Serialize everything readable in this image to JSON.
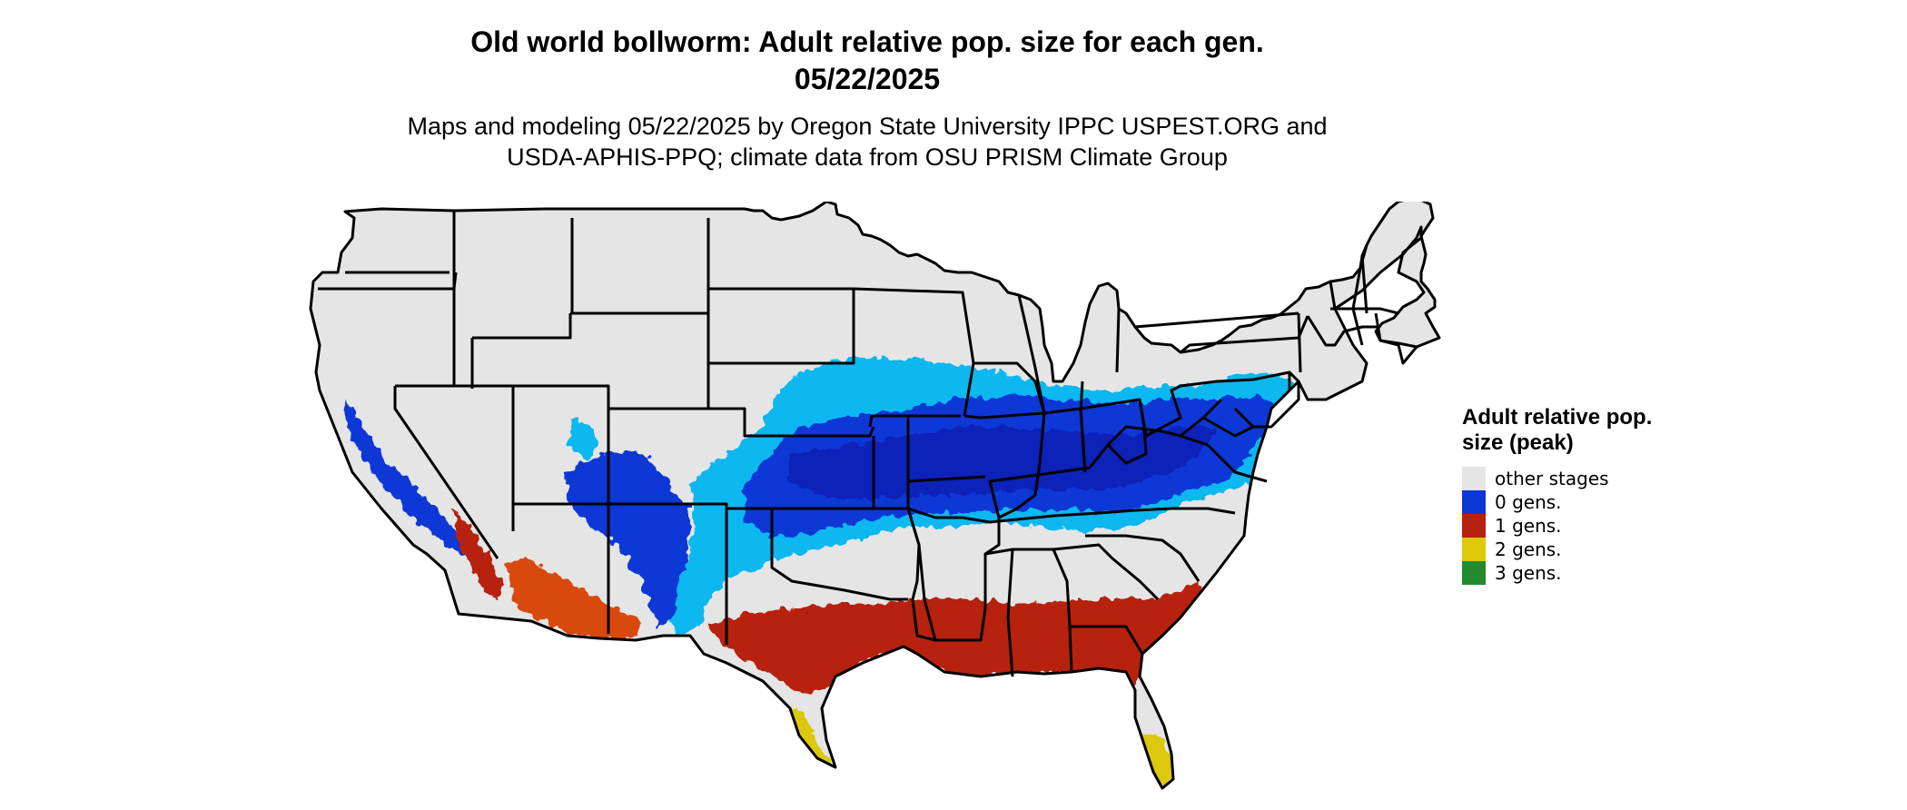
{
  "title": {
    "line1": "Old world bollworm: Adult relative pop. size for each gen.",
    "line2": "05/22/2025"
  },
  "subtitle": {
    "line1": "Maps and modeling 05/22/2025 by Oregon State University IPPC USPEST.ORG and",
    "line2": "USDA-APHIS-PPQ; climate data from OSU PRISM Climate Group"
  },
  "legend": {
    "title": "Adult relative pop. size (peak)",
    "items": [
      {
        "label": "other stages",
        "color": "#e5e5e5"
      },
      {
        "label": "0 gens.",
        "color": "#0a37d6"
      },
      {
        "label": "1 gens.",
        "color": "#b6220f"
      },
      {
        "label": "2 gens.",
        "color": "#dcc90a"
      },
      {
        "label": "3 gens.",
        "color": "#248a2d"
      }
    ]
  },
  "map_colors": {
    "background": "#e5e5e5",
    "light_blue": "#0bb7f0",
    "blue": "#0a37d6",
    "dark_blue": "#0822b8",
    "red": "#b6220f",
    "orange_red": "#d84a10",
    "yellow": "#dcc90a",
    "border": "#000000"
  }
}
